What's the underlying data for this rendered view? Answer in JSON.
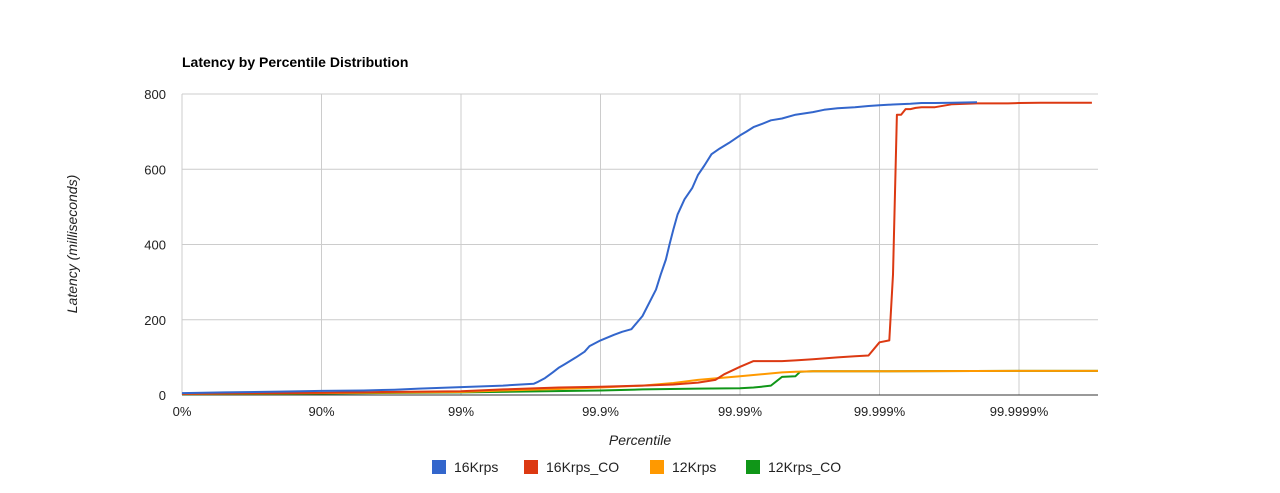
{
  "chart_data": {
    "type": "line",
    "title": "Latency by Percentile Distribution",
    "xlabel": "Percentile",
    "ylabel": "Latency (milliseconds)",
    "x_scale": "log_inverse_percentile",
    "x_ticks": [
      "0%",
      "90%",
      "99%",
      "99.9%",
      "99.99%",
      "99.999%",
      "99.9999%"
    ],
    "x_range": [
      "0%",
      "99.99999%"
    ],
    "y_ticks": [
      "0",
      "200",
      "400",
      "600",
      "800"
    ],
    "ylim": [
      0,
      800
    ],
    "grid": true,
    "legend_position": "bottom",
    "series": [
      {
        "name": "16Krps",
        "color": "#3366cc",
        "x": [
          "0%",
          "50%",
          "80%",
          "90%",
          "95%",
          "97%",
          "98%",
          "99%",
          "99.5%",
          "99.6%",
          "99.7%",
          "99.72%",
          "99.75%",
          "99.78%",
          "99.8%",
          "99.82%",
          "99.85%",
          "99.87%",
          "99.88%",
          "99.9%",
          "99.92%",
          "99.93%",
          "99.94%",
          "99.95%",
          "99.96%",
          "99.963%",
          "99.966%",
          "99.968%",
          "99.97%",
          "99.972%",
          "99.975%",
          "99.978%",
          "99.98%",
          "99.982%",
          "99.984%",
          "99.986%",
          "99.988%",
          "99.99%",
          "99.991%",
          "99.992%",
          "99.993%",
          "99.994%",
          "99.995%",
          "99.996%",
          "99.997%",
          "99.9975%",
          "99.998%",
          "99.9985%",
          "99.9988%",
          "99.999%",
          "99.9992%",
          "99.9994%",
          "99.9995%",
          "99.9996%",
          "99.9997%",
          "99.9998%"
        ],
        "y": [
          5,
          7,
          9,
          11,
          12,
          14,
          17,
          21,
          25,
          27,
          30,
          35,
          45,
          60,
          72,
          82,
          100,
          115,
          130,
          145,
          160,
          168,
          175,
          210,
          280,
          320,
          360,
          400,
          440,
          480,
          520,
          550,
          585,
          610,
          640,
          655,
          670,
          690,
          700,
          712,
          720,
          730,
          735,
          745,
          752,
          758,
          762,
          765,
          768,
          770,
          772,
          774,
          776,
          776,
          777,
          778
        ]
      },
      {
        "name": "16Krps_CO",
        "color": "#dc3912",
        "x": [
          "0%",
          "90%",
          "99%",
          "99.5%",
          "99.8%",
          "99.9%",
          "99.95%",
          "99.97%",
          "99.98%",
          "99.985%",
          "99.987%",
          "99.99%",
          "99.992%",
          "99.993%",
          "99.995%",
          "99.996%",
          "99.997%",
          "99.998%",
          "99.9985%",
          "99.9988%",
          "99.999%",
          "99.99915%",
          "99.9992%",
          "99.99925%",
          "99.9993%",
          "99.99935%",
          "99.9994%",
          "99.99945%",
          "99.9995%",
          "99.9996%",
          "99.9997%",
          "99.9998%",
          "99.99985%",
          "99.99988%",
          "99.9999%",
          "99.99993%",
          "99.99995%",
          "99.99996%",
          "99.99997%"
        ],
        "y": [
          3,
          6,
          10,
          15,
          20,
          22,
          25,
          28,
          33,
          40,
          55,
          75,
          90,
          90,
          90,
          92,
          95,
          100,
          103,
          105,
          140,
          145,
          320,
          745,
          745,
          760,
          760,
          763,
          765,
          765,
          773,
          775,
          775,
          775,
          776,
          777,
          777,
          777,
          777
        ]
      },
      {
        "name": "12Krps",
        "color": "#ff9900",
        "x": [
          "0%",
          "90%",
          "99%",
          "99.5%",
          "99.8%",
          "99.9%",
          "99.95%",
          "99.97%",
          "99.98%",
          "99.99%",
          "99.993%",
          "99.995%",
          "99.996%",
          "99.997%",
          "99.998%",
          "99.999%",
          "99.9999%",
          "99.99999%"
        ],
        "y": [
          3,
          5,
          8,
          12,
          16,
          20,
          25,
          32,
          40,
          50,
          55,
          60,
          62,
          63,
          63,
          63,
          64,
          64
        ]
      },
      {
        "name": "12Krps_CO",
        "color": "#109618",
        "x": [
          "0%",
          "90%",
          "99%",
          "99.9%",
          "99.95%",
          "99.98%",
          "99.99%",
          "99.992%",
          "99.993%",
          "99.994%",
          "99.995%",
          "99.996%",
          "99.9963%",
          "99.997%",
          "99.999%",
          "99.9999%",
          "99.99999%"
        ],
        "y": [
          2,
          4,
          7,
          12,
          15,
          17,
          18,
          20,
          22,
          25,
          48,
          50,
          62,
          63,
          63,
          64,
          64
        ]
      }
    ]
  }
}
